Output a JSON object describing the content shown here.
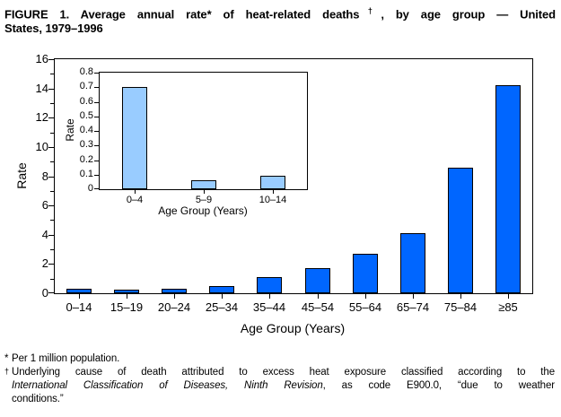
{
  "title": {
    "part1": "FIGURE 1. Average annual rate* of heat-related deaths",
    "sup": "†",
    "part2": ", by age group — United",
    "line2": "States, 1979–1996"
  },
  "chart_data": [
    {
      "type": "bar",
      "name": "main-chart",
      "categories": [
        "0–14",
        "15–19",
        "20–24",
        "25–34",
        "35–44",
        "45–54",
        "55–64",
        "65–74",
        "75–84",
        "≥85"
      ],
      "values": [
        0.3,
        0.25,
        0.3,
        0.5,
        1.1,
        1.7,
        2.7,
        4.1,
        8.6,
        14.2
      ],
      "xlabel": "Age Group (Years)",
      "ylabel": "Rate",
      "ylim": [
        0,
        16
      ],
      "yticks": [
        0,
        2,
        4,
        6,
        8,
        10,
        12,
        14,
        16
      ],
      "yticks_minor": [
        1,
        3,
        5,
        7,
        9,
        11,
        13,
        15
      ],
      "grid": false,
      "bar_color": "#0066ff",
      "bar_border_color": "#000000"
    },
    {
      "type": "bar",
      "name": "inset-chart",
      "categories": [
        "0–4",
        "5–9",
        "10–14"
      ],
      "values": [
        0.7,
        0.06,
        0.09
      ],
      "xlabel": "Age Group (Years)",
      "ylabel": "Rate",
      "ylim": [
        0,
        0.8
      ],
      "yticks": [
        0,
        0.1,
        0.2,
        0.3,
        0.4,
        0.5,
        0.6,
        0.7,
        0.8
      ],
      "yticks_minor": [],
      "grid": false,
      "bar_color": "#99ccff",
      "bar_border_color": "#000000"
    }
  ],
  "footnotes": {
    "fn1_marker": "*",
    "fn1_text": "Per 1 million population.",
    "fn2_marker": "†",
    "fn2_line1": "Underlying cause of death attributed to excess heat exposure classified according to the",
    "fn2_line2_italic": "International Classification of Diseases, Ninth Revision",
    "fn2_line2_rest": ", as code E900.0, “due to weather",
    "fn2_line3": "conditions.”"
  }
}
